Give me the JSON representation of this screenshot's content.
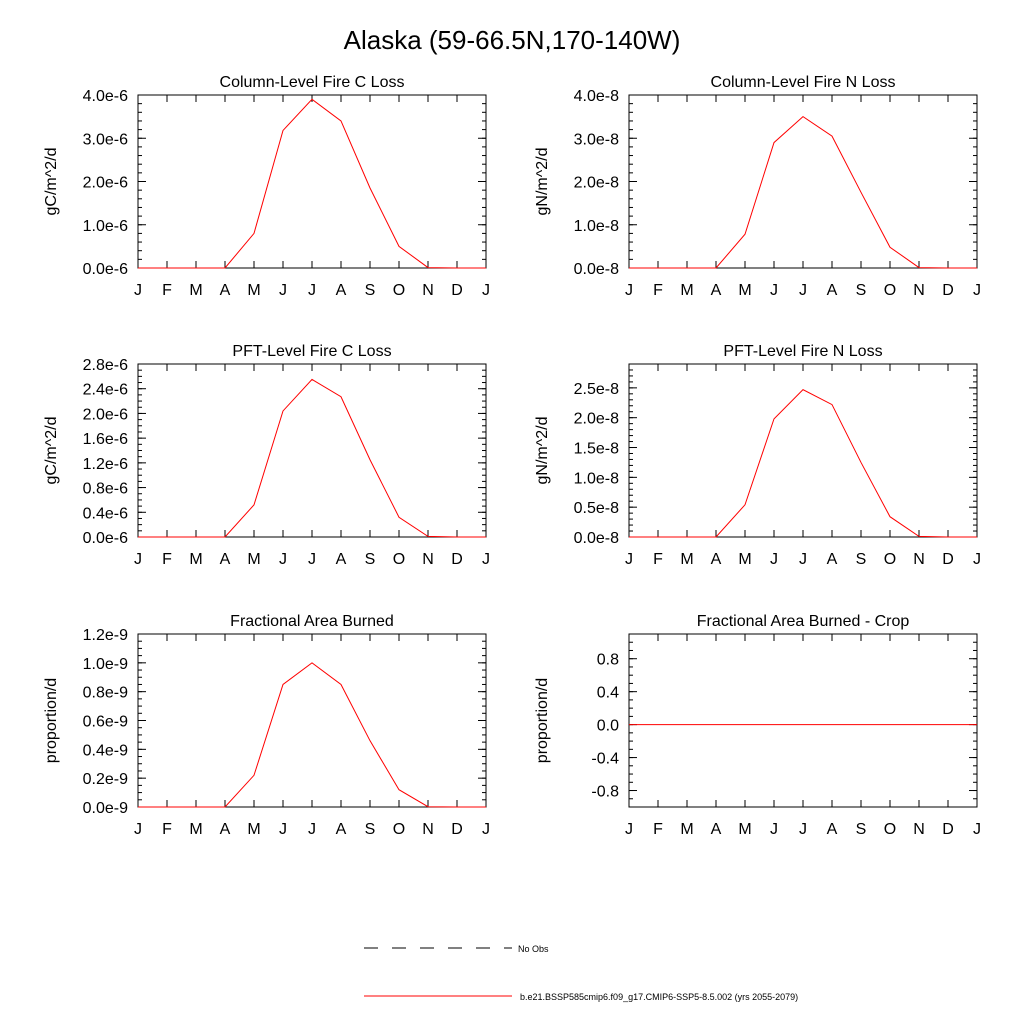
{
  "figure": {
    "title": "Alaska (59-66.5N,170-140W)"
  },
  "colors": {
    "series": "#ff0000",
    "axis": "#000000",
    "obs": "#000000"
  },
  "legend": {
    "obs_label": "No Obs",
    "model_label": "b.e21.BSSP585cmip6.f09_g17.CMIP6-SSP5-8.5.002 (yrs 2055-2079)"
  },
  "chart_data": [
    {
      "type": "line",
      "title": "Column-Level Fire C Loss",
      "ylabel": "gC/m^2/d",
      "x_tick_labels": [
        "J",
        "F",
        "M",
        "A",
        "M",
        "J",
        "J",
        "A",
        "S",
        "O",
        "N",
        "D",
        "J"
      ],
      "ylim": [
        0,
        4e-06
      ],
      "y_ticks": [
        0,
        1e-06,
        2e-06,
        3e-06,
        4e-06
      ],
      "y_tick_labels": [
        "0.0e-6",
        "1.0e-6",
        "2.0e-6",
        "3.0e-6",
        "4.0e-6"
      ],
      "y_minor_step": 2e-07,
      "series": [
        {
          "name": "model",
          "values": [
            0,
            0,
            0,
            0,
            8e-07,
            3.18e-06,
            3.9e-06,
            3.4e-06,
            1.85e-06,
            5e-07,
            1e-08,
            0,
            0
          ]
        }
      ]
    },
    {
      "type": "line",
      "title": "Column-Level Fire N Loss",
      "ylabel": "gN/m^2/d",
      "x_tick_labels": [
        "J",
        "F",
        "M",
        "A",
        "M",
        "J",
        "J",
        "A",
        "S",
        "O",
        "N",
        "D",
        "J"
      ],
      "ylim": [
        0,
        4e-08
      ],
      "y_ticks": [
        0,
        1e-08,
        2e-08,
        3e-08,
        4e-08
      ],
      "y_tick_labels": [
        "0.0e-8",
        "1.0e-8",
        "2.0e-8",
        "3.0e-8",
        "4.0e-8"
      ],
      "y_minor_step": 2e-09,
      "series": [
        {
          "name": "model",
          "values": [
            0,
            0,
            0,
            0,
            7.8e-09,
            2.9e-08,
            3.5e-08,
            3.05e-08,
            1.75e-08,
            4.8e-09,
            1e-10,
            0,
            0
          ]
        }
      ]
    },
    {
      "type": "line",
      "title": "PFT-Level Fire C Loss",
      "ylabel": "gC/m^2/d",
      "x_tick_labels": [
        "J",
        "F",
        "M",
        "A",
        "M",
        "J",
        "J",
        "A",
        "S",
        "O",
        "N",
        "D",
        "J"
      ],
      "ylim": [
        0,
        2.8e-06
      ],
      "y_ticks": [
        0,
        4e-07,
        8e-07,
        1.2e-06,
        1.6e-06,
        2e-06,
        2.4e-06,
        2.8e-06
      ],
      "y_tick_labels": [
        "0.0e-6",
        "0.4e-6",
        "0.8e-6",
        "1.2e-6",
        "1.6e-6",
        "2.0e-6",
        "2.4e-6",
        "2.8e-6"
      ],
      "y_minor_step": 1e-07,
      "series": [
        {
          "name": "model",
          "values": [
            0,
            0,
            0,
            0,
            5.2e-07,
            2.04e-06,
            2.55e-06,
            2.27e-06,
            1.25e-06,
            3.2e-07,
            1e-08,
            0,
            0
          ]
        }
      ]
    },
    {
      "type": "line",
      "title": "PFT-Level Fire N Loss",
      "ylabel": "gN/m^2/d",
      "x_tick_labels": [
        "J",
        "F",
        "M",
        "A",
        "M",
        "J",
        "J",
        "A",
        "S",
        "O",
        "N",
        "D",
        "J"
      ],
      "ylim": [
        0,
        2.9e-08
      ],
      "y_ticks": [
        0,
        5e-09,
        1e-08,
        1.5e-08,
        2e-08,
        2.5e-08
      ],
      "y_tick_labels": [
        "0.0e-8",
        "0.5e-8",
        "1.0e-8",
        "1.5e-8",
        "2.0e-8",
        "2.5e-8"
      ],
      "y_minor_step": 1e-09,
      "series": [
        {
          "name": "model",
          "values": [
            0,
            0,
            0,
            0,
            5.4e-09,
            1.98e-08,
            2.47e-08,
            2.22e-08,
            1.25e-08,
            3.4e-09,
            1e-10,
            0,
            0
          ]
        }
      ]
    },
    {
      "type": "line",
      "title": "Fractional Area Burned",
      "ylabel": "proportion/d",
      "x_tick_labels": [
        "J",
        "F",
        "M",
        "A",
        "M",
        "J",
        "J",
        "A",
        "S",
        "O",
        "N",
        "D",
        "J"
      ],
      "ylim": [
        0,
        1.2e-09
      ],
      "y_ticks": [
        0,
        2e-10,
        4e-10,
        6e-10,
        8e-10,
        1e-09,
        1.2e-09
      ],
      "y_tick_labels": [
        "0.0e-9",
        "0.2e-9",
        "0.4e-9",
        "0.6e-9",
        "0.8e-9",
        "1.0e-9",
        "1.2e-9"
      ],
      "y_minor_step": 5e-11,
      "series": [
        {
          "name": "model",
          "values": [
            0,
            0,
            0,
            0,
            2.2e-10,
            8.5e-10,
            1e-09,
            8.5e-10,
            4.6e-10,
            1.2e-10,
            2e-12,
            0,
            0
          ]
        }
      ]
    },
    {
      "type": "line",
      "title": "Fractional Area Burned - Crop",
      "ylabel": "proportion/d",
      "x_tick_labels": [
        "J",
        "F",
        "M",
        "A",
        "M",
        "J",
        "J",
        "A",
        "S",
        "O",
        "N",
        "D",
        "J"
      ],
      "ylim": [
        -1.0,
        1.1
      ],
      "y_ticks": [
        -0.8,
        -0.4,
        0.0,
        0.4,
        0.8
      ],
      "y_tick_labels": [
        "-0.8",
        "-0.4",
        "0.0",
        "0.4",
        "0.8"
      ],
      "y_minor_step": 0.1,
      "series": [
        {
          "name": "model",
          "values": [
            0,
            0,
            0,
            0,
            0,
            0,
            0,
            0,
            0,
            0,
            0,
            0,
            0
          ]
        }
      ]
    }
  ]
}
